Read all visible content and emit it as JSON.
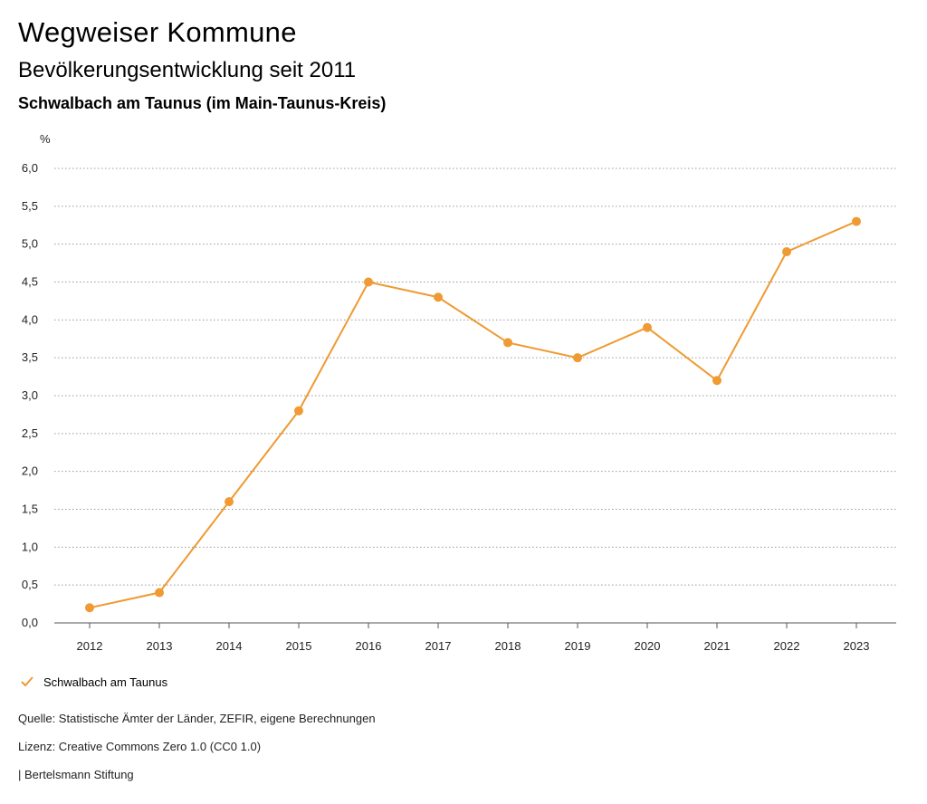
{
  "header": {
    "title": "Wegweiser Kommune",
    "subtitle": "Bevölkerungsentwicklung seit 2011",
    "region": "Schwalbach am Taunus (im Main-Taunus-Kreis)"
  },
  "chart_data": {
    "type": "line",
    "ylabel": "%",
    "x": [
      "2012",
      "2013",
      "2014",
      "2015",
      "2016",
      "2017",
      "2018",
      "2019",
      "2020",
      "2021",
      "2022",
      "2023"
    ],
    "series": [
      {
        "name": "Schwalbach am Taunus",
        "values": [
          0.2,
          0.4,
          1.6,
          2.8,
          4.5,
          4.3,
          3.7,
          3.5,
          3.9,
          3.2,
          4.9,
          5.3
        ]
      }
    ],
    "ylim": [
      0,
      6
    ],
    "yticks": [
      "0,0",
      "0,5",
      "1,0",
      "1,5",
      "2,0",
      "2,5",
      "3,0",
      "3,5",
      "4,0",
      "4,5",
      "5,0",
      "5,5",
      "6,0"
    ],
    "grid": true,
    "legend": "bottom-left",
    "color": "#ef9a32"
  },
  "footer": {
    "source": "Quelle: Statistische Ämter der Länder, ZEFIR, eigene Berechnungen",
    "license": "Lizenz: Creative Commons Zero 1.0 (CC0 1.0)",
    "brand": "| Bertelsmann Stiftung"
  }
}
